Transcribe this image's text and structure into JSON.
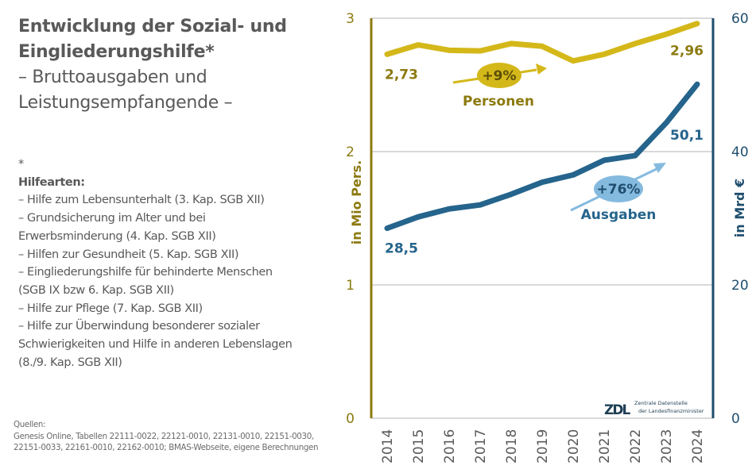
{
  "left_panel": {
    "title_line1": "Entwicklung der Sozial- und",
    "title_line2": "Eingliederungshilfe*",
    "subtitle_line1": "– Bruttoausgaben und",
    "subtitle_line2": "Leistungsempfangende –",
    "footnote_marker": "*",
    "footnote_heading": "Hilfearten:",
    "footnote_lines": [
      "– Hilfe zum Lebensunterhalt (3. Kap. SGB XII)",
      "– Grundsicherung im Alter und bei",
      "Erwerbsminderung (4. Kap. SGB XII)",
      "– Hilfen zur Gesundheit (5. Kap. SGB XII)",
      "– Eingliederungshilfe für behinderte Menschen",
      "(SGB IX bzw 6. Kap. SGB XII)",
      "– Hilfe zur Pflege (7. Kap. SGB XII)",
      "– Hilfe zur Überwindung besonderer sozialer",
      "Schwierigkeiten und Hilfe in anderen Lebenslagen",
      "(8./9. Kap. SGB XII)"
    ],
    "sources_heading": "Quellen:",
    "sources_line1": "Genesis Online, Tabellen 22111-0022, 22121-0010, 22131-0010, 22151-0030,",
    "sources_line2": "22151-0033, 22161-0010, 22162-0010; BMAS-Webseite, eigene Berechnungen"
  },
  "colors": {
    "personen_line": "#D4B81A",
    "personen_text": "#8C7A10",
    "ausgaben_line": "#25648C",
    "ausgaben_text": "#25648C",
    "left_axis": "#8C7A10",
    "right_axis": "#1F4E6E",
    "ausgaben_bubble": "#85BADF",
    "gridline": "#D9D9D9"
  },
  "logo": {
    "mark": "ZDL",
    "line1": "Zentrale Datenstelle",
    "line2": "der Landesfinanzminister"
  },
  "chart_data": {
    "type": "line",
    "title": "Entwicklung der Sozial- und Eingliederungshilfe – Bruttoausgaben und Leistungsempfangende",
    "x": [
      "2014",
      "2015",
      "2016",
      "2017",
      "2018",
      "2019",
      "2020",
      "2021",
      "2022",
      "2023",
      "2024"
    ],
    "series": [
      {
        "name": "Personen",
        "axis": "left",
        "unit": "Mio Pers.",
        "values": [
          2.73,
          2.8,
          2.76,
          2.755,
          2.81,
          2.79,
          2.68,
          2.73,
          2.81,
          2.88,
          2.96
        ],
        "labels": {
          "first": "2,73",
          "last": "2,96"
        },
        "annotation": {
          "change": "+9%",
          "label": "Personen"
        }
      },
      {
        "name": "Ausgaben",
        "axis": "right",
        "unit": "Mrd €",
        "values": [
          28.5,
          30.2,
          31.4,
          32.0,
          33.6,
          35.4,
          36.5,
          38.7,
          39.4,
          44.3,
          50.1
        ],
        "labels": {
          "first": "28,5",
          "last": "50,1"
        },
        "annotation": {
          "change": "+76%",
          "label": "Ausgaben"
        }
      }
    ],
    "y_left": {
      "label": "in Mio Pers.",
      "range": [
        0,
        3
      ],
      "ticks": [
        "0",
        "1",
        "2",
        "3"
      ]
    },
    "y_right": {
      "label": "in Mrd €",
      "range": [
        0,
        60
      ],
      "ticks": [
        "0",
        "20",
        "40",
        "60"
      ]
    },
    "grid": true,
    "legend": "none (inline annotations)"
  }
}
